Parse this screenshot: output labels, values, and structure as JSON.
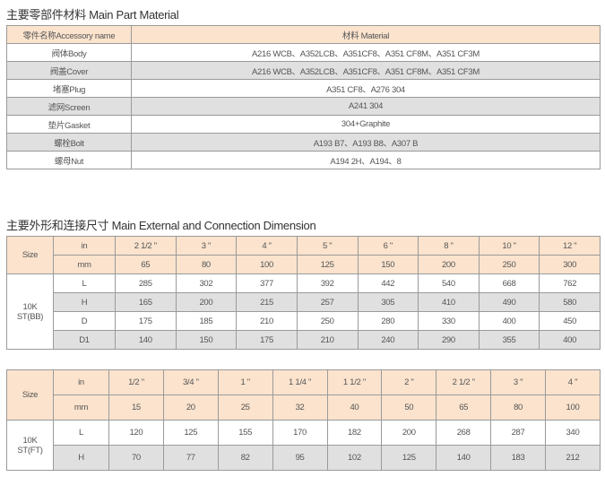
{
  "materials": {
    "title": "主要零部件材料 Main Part Material",
    "headers": [
      "零件名称Accessory name",
      "材料 Material"
    ],
    "rows": [
      [
        "阀体Body",
        "A216 WCB、A352LCB、A351CF8、A351 CF8M、A351 CF3M"
      ],
      [
        "阀盖Cover",
        "A216 WCB、A352LCB、A351CF8、A351 CF8M、A351 CF3M"
      ],
      [
        "堵塞Plug",
        "A351 CF8、A276 304"
      ],
      [
        "滤网Screen",
        "A241 304"
      ],
      [
        "垫片Gasket",
        "304+Graphite"
      ],
      [
        "螺栓Bolt",
        "A193 B7、A193 B8、A307 B"
      ],
      [
        "螺母Nut",
        "A194 2H、A194、8"
      ]
    ]
  },
  "dimensions": {
    "title": "主要外形和连接尺寸 Main External and Connection Dimension",
    "size_label": "Size",
    "in_label": "in",
    "mm_label": "mm",
    "bb": {
      "type": "10K ST(BB)",
      "in": [
        "2 1/2 \"",
        "3 \"",
        "4 \"",
        "5 \"",
        "6 \"",
        "8 \"",
        "10 \"",
        "12 \""
      ],
      "mm": [
        "65",
        "80",
        "100",
        "125",
        "150",
        "200",
        "250",
        "300"
      ],
      "rows": [
        {
          "label": "L",
          "values": [
            "285",
            "302",
            "377",
            "392",
            "442",
            "540",
            "668",
            "762"
          ]
        },
        {
          "label": "H",
          "values": [
            "165",
            "200",
            "215",
            "257",
            "305",
            "410",
            "490",
            "580"
          ]
        },
        {
          "label": "D",
          "values": [
            "175",
            "185",
            "210",
            "250",
            "280",
            "330",
            "400",
            "450"
          ]
        },
        {
          "label": "D1",
          "values": [
            "140",
            "150",
            "175",
            "210",
            "240",
            "290",
            "355",
            "400"
          ]
        }
      ]
    },
    "ft": {
      "type": "10K ST(FT)",
      "in": [
        "1/2 \"",
        "3/4 \"",
        "1 \"",
        "1 1/4 \"",
        "1 1/2 \"",
        "2 \"",
        "2 1/2 \"",
        "3 \"",
        "4 \""
      ],
      "mm": [
        "15",
        "20",
        "25",
        "32",
        "40",
        "50",
        "65",
        "80",
        "100"
      ],
      "rows": [
        {
          "label": "L",
          "values": [
            "120",
            "125",
            "155",
            "170",
            "182",
            "200",
            "268",
            "287",
            "340"
          ]
        },
        {
          "label": "H",
          "values": [
            "70",
            "77",
            "82",
            "95",
            "102",
            "125",
            "140",
            "183",
            "212"
          ]
        }
      ]
    }
  }
}
